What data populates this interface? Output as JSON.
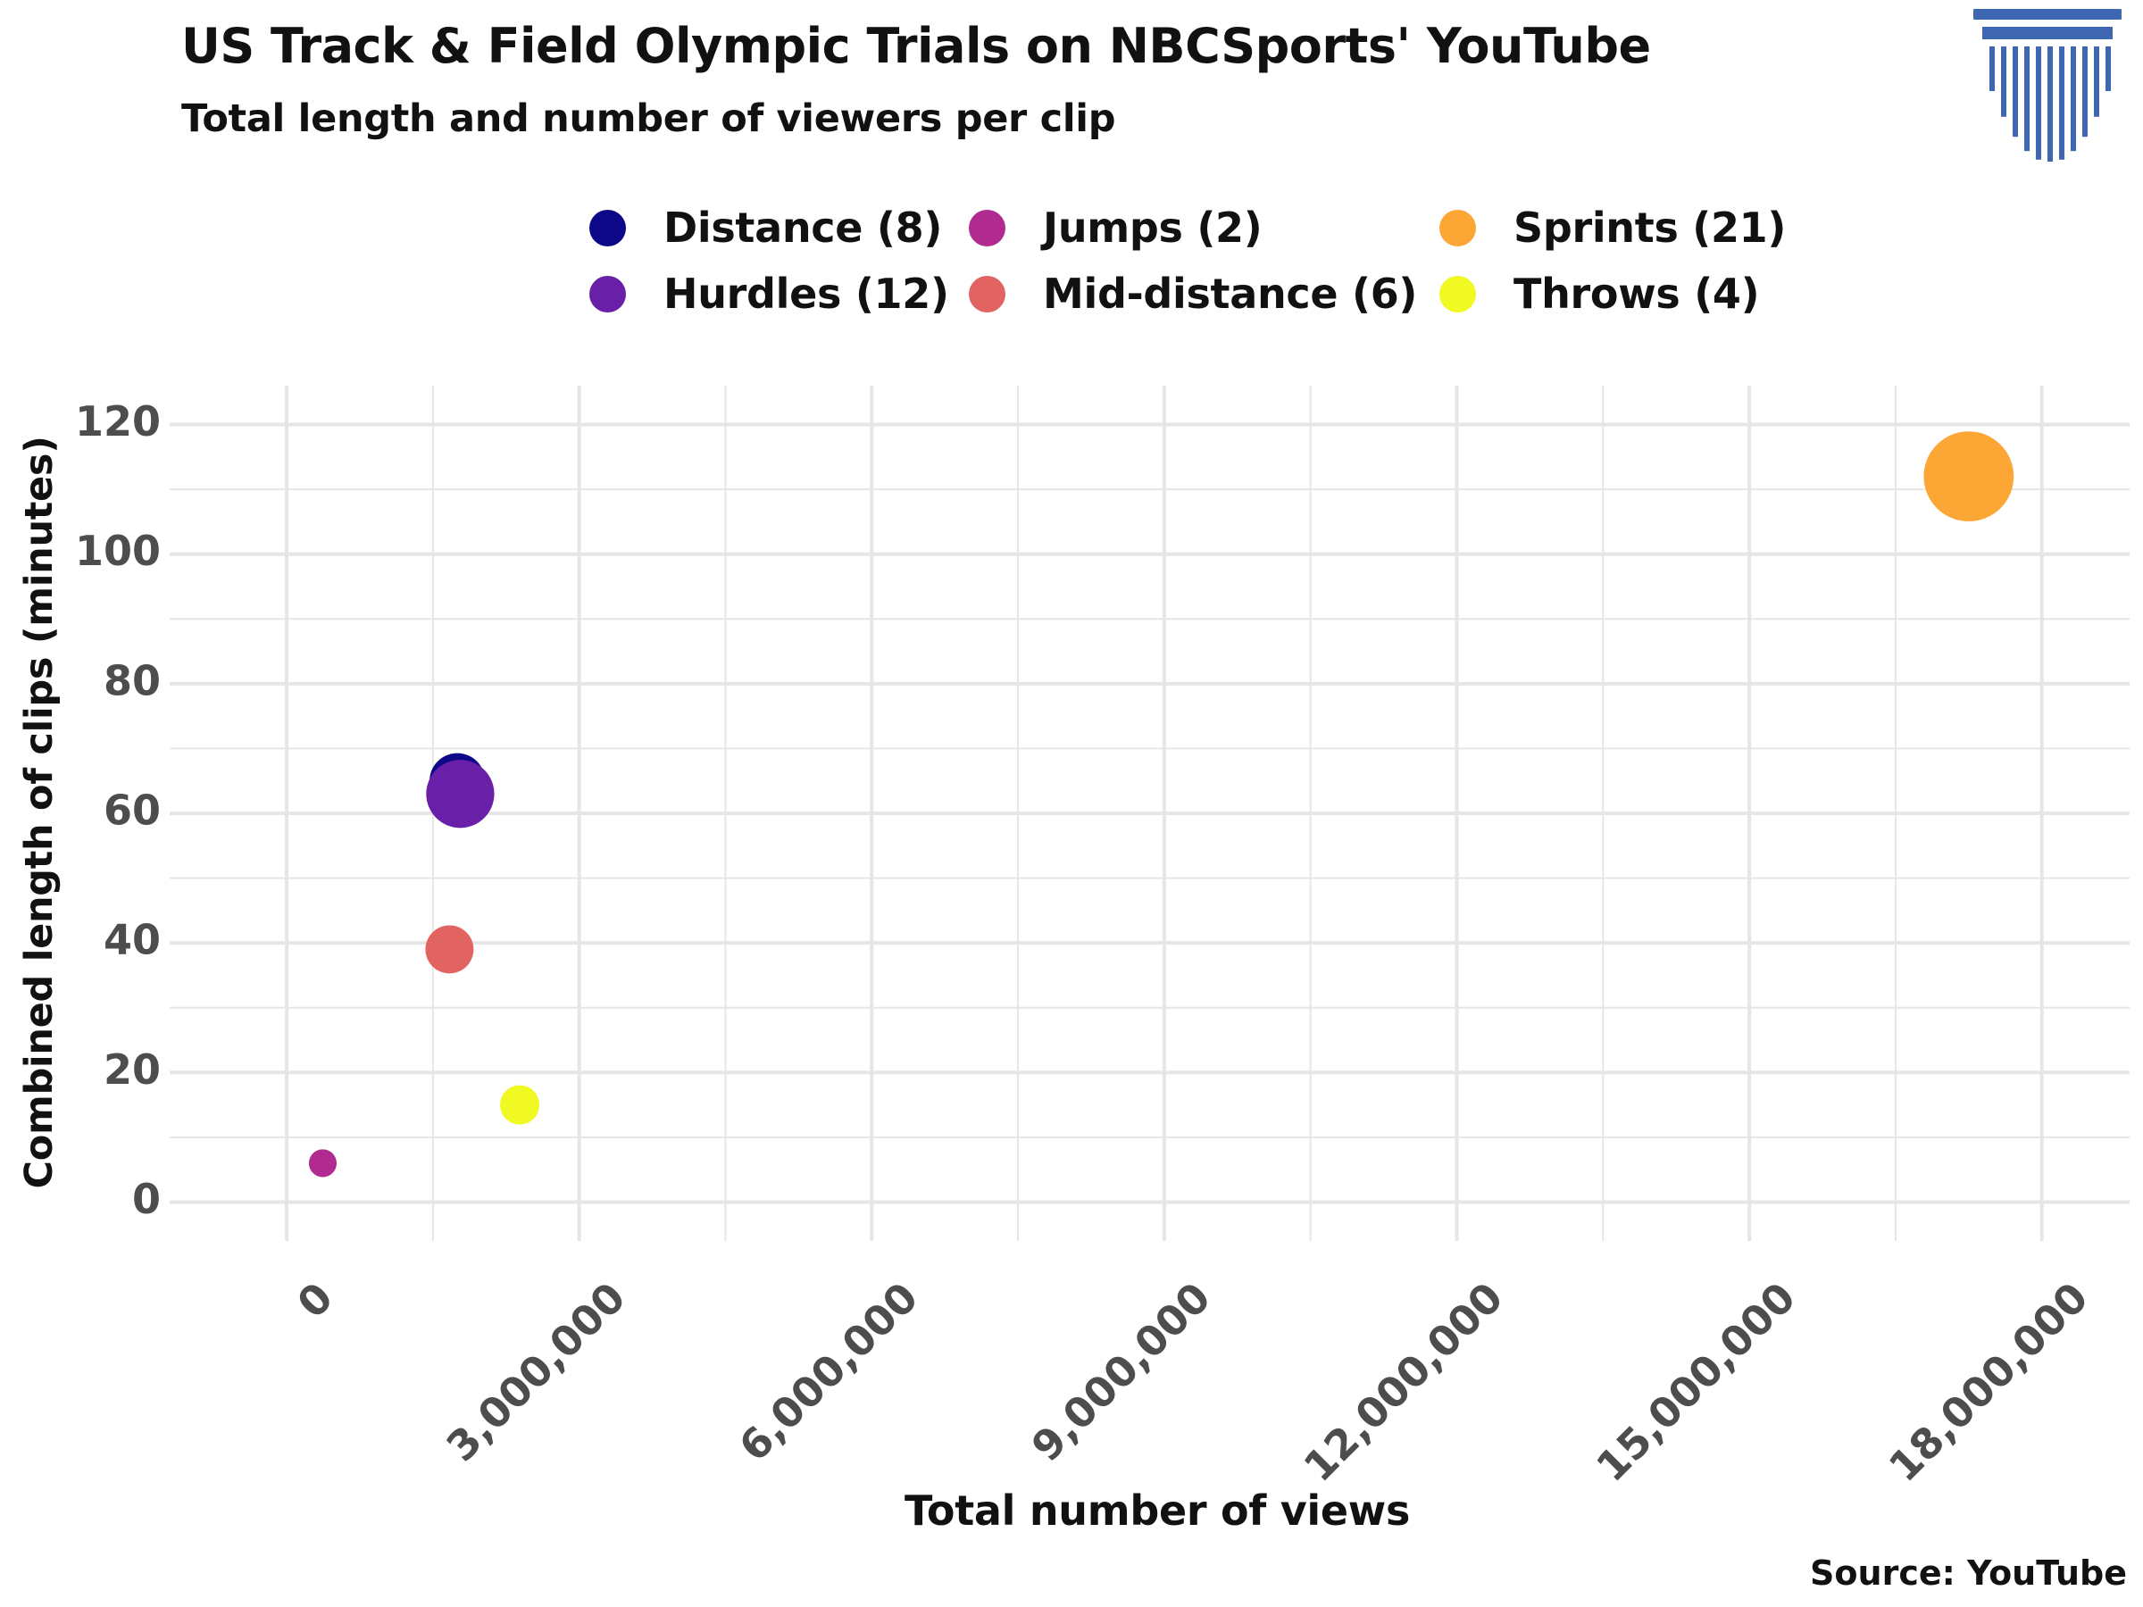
{
  "title": "US Track & Field Olympic Trials on NBCSports' YouTube",
  "subtitle": "Total length and number of viewers per clip",
  "source": "Source: YouTube",
  "colors": {
    "logo": "#3f67b1",
    "grid": "#e6e6e6",
    "tick_text": "#4d4d4d"
  },
  "chart_data": {
    "type": "scatter",
    "title": "US Track & Field Olympic Trials on NBCSports' YouTube",
    "subtitle": "Total length and number of viewers per clip",
    "xlabel": "Total number of views",
    "ylabel": "Combined length of clips (minutes)",
    "xlim": [
      -1200000,
      18900000
    ],
    "ylim": [
      -6,
      126
    ],
    "x_ticks": [
      0,
      3000000,
      6000000,
      9000000,
      12000000,
      15000000,
      18000000
    ],
    "x_tick_labels": [
      "0",
      "3,000,000",
      "6,000,000",
      "9,000,000",
      "12,000,000",
      "15,000,000",
      "18,000,000"
    ],
    "y_ticks": [
      0,
      20,
      40,
      60,
      80,
      100,
      120
    ],
    "y_tick_labels": [
      "0",
      "20",
      "40",
      "60",
      "80",
      "100",
      "120"
    ],
    "grid": true,
    "legend_position": "top",
    "series": [
      {
        "name": "Distance (8)",
        "color": "#0d0887",
        "x": 1750000,
        "y": 65,
        "clips": 8
      },
      {
        "name": "Hurdles (12)",
        "color": "#6a1fa8",
        "x": 1780000,
        "y": 63,
        "clips": 12
      },
      {
        "name": "Jumps (2)",
        "color": "#b12a90",
        "x": 370000,
        "y": 6,
        "clips": 2
      },
      {
        "name": "Mid-distance (6)",
        "color": "#e16462",
        "x": 1670000,
        "y": 39,
        "clips": 6
      },
      {
        "name": "Sprints (21)",
        "color": "#fca636",
        "x": 17250000,
        "y": 112,
        "clips": 21
      },
      {
        "name": "Throws (4)",
        "color": "#f0f921",
        "x": 2390000,
        "y": 15,
        "clips": 4
      }
    ]
  }
}
